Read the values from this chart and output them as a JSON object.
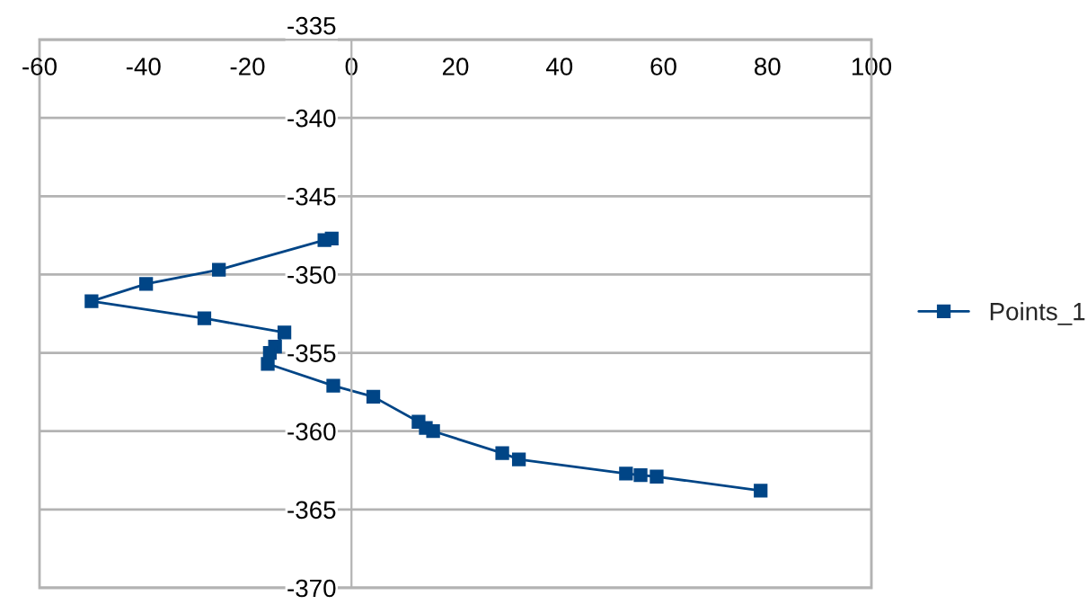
{
  "chart_data": {
    "type": "line",
    "xlim": [
      -60,
      100
    ],
    "ylim": [
      -370,
      -335
    ],
    "xticks": [
      -60,
      -40,
      -20,
      0,
      20,
      40,
      60,
      80,
      100
    ],
    "yticks": [
      -370,
      -365,
      -360,
      -355,
      -350,
      -345,
      -340,
      -335
    ],
    "grid": "y",
    "legend": "right",
    "marker": "square",
    "line_style": "solid",
    "series": [
      {
        "name": "Points_1",
        "color": "#004586",
        "x": [
          -3.8,
          -5.2,
          -25.5,
          -39.5,
          -50,
          -28.3,
          -12.9,
          -14.7,
          -15.7,
          -16.1,
          -3.5,
          4.2,
          12.9,
          14.3,
          15.7,
          29,
          32.2,
          52.8,
          55.6,
          58.7,
          78.7
        ],
        "values": [
          -347.7,
          -347.8,
          -349.7,
          -350.6,
          -351.7,
          -352.8,
          -353.7,
          -354.6,
          -355.0,
          -355.7,
          -357.1,
          -357.8,
          -359.4,
          -359.8,
          -360.0,
          -361.4,
          -361.8,
          -362.7,
          -362.8,
          -362.9,
          -363.8
        ]
      }
    ]
  }
}
